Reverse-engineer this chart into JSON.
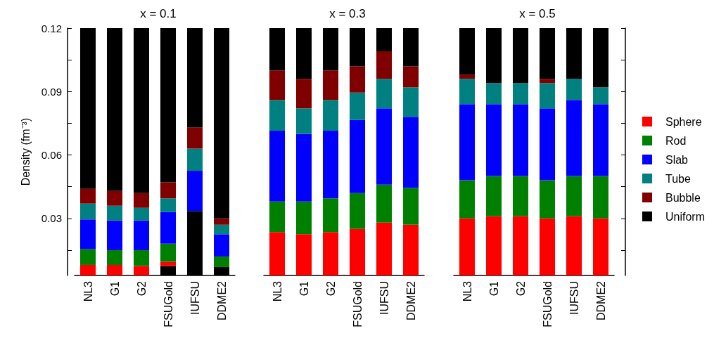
{
  "chart_data": [
    {
      "type": "bar",
      "title": "x = 0.1",
      "ylabel": "Density (fm⁻³)",
      "categories": [
        "NL3",
        "G1",
        "G2",
        "FSUGold",
        "IUFSU",
        "DDME2"
      ],
      "ylim": [
        0.003,
        0.12
      ],
      "yticks": [
        {
          "value": 0.015,
          "label": null
        },
        0.03,
        {
          "value": 0.045,
          "label": null
        },
        0.06,
        {
          "value": 0.075,
          "label": null
        },
        0.09,
        {
          "value": 0.105,
          "label": null
        },
        0.12
      ],
      "legend": false,
      "series": [
        {
          "color": "#000000",
          "base": [
            null,
            null,
            null,
            0.003,
            0.003,
            0.003
          ],
          "values": [
            null,
            null,
            null,
            0.0045,
            0.0305,
            0.004
          ]
        },
        {
          "color": "#ff0000",
          "base": [
            0.003,
            0.003,
            0.003,
            0.0075,
            null,
            null
          ],
          "values": [
            0.005,
            0.005,
            0.0045,
            0.002,
            null,
            null
          ]
        },
        {
          "color": "#008000",
          "base": [
            0.008,
            0.008,
            0.0075,
            0.0095,
            null,
            0.007
          ],
          "values": [
            0.0075,
            0.007,
            0.0075,
            0.0085,
            null,
            0.005
          ]
        },
        {
          "color": "#0000ff",
          "base": [
            0.0155,
            0.015,
            0.015,
            0.018,
            0.0335,
            0.012
          ],
          "values": [
            0.014,
            0.014,
            0.014,
            0.015,
            0.019,
            0.0105
          ]
        },
        {
          "color": "#008080",
          "base": [
            0.0295,
            0.029,
            0.029,
            0.033,
            0.0525,
            0.0225
          ],
          "values": [
            0.0075,
            0.007,
            0.006,
            0.0065,
            0.0105,
            0.0045
          ]
        },
        {
          "color": "#800000",
          "base": [
            0.037,
            0.036,
            0.035,
            0.0395,
            0.063,
            0.027
          ],
          "values": [
            0.007,
            0.007,
            0.007,
            0.0075,
            0.01,
            0.003
          ]
        },
        {
          "color": "#000000",
          "base": [
            0.044,
            0.043,
            0.042,
            0.047,
            0.073,
            0.03
          ],
          "values": [
            0.076,
            0.077,
            0.078,
            0.073,
            0.047,
            0.09
          ]
        }
      ]
    },
    {
      "type": "bar",
      "title": "x = 0.3",
      "categories": [
        "NL3",
        "G1",
        "G2",
        "FSUGold",
        "IUFSU",
        "DDME2"
      ],
      "ylim": [
        0.003,
        0.12
      ],
      "tick_labels": "x",
      "legend": false,
      "series": [
        {
          "color": "#ff0000",
          "base": [
            0.003,
            0.003,
            0.003,
            0.003,
            0.003,
            0.003
          ],
          "values": [
            0.0205,
            0.0195,
            0.0205,
            0.022,
            0.025,
            0.024
          ]
        },
        {
          "color": "#008000",
          "base": [
            0.0235,
            0.0225,
            0.0235,
            0.025,
            0.028,
            0.027
          ],
          "values": [
            0.0145,
            0.0155,
            0.016,
            0.017,
            0.018,
            0.0175
          ]
        },
        {
          "color": "#0000ff",
          "base": [
            0.038,
            0.038,
            0.0395,
            0.042,
            0.046,
            0.0445
          ],
          "values": [
            0.0335,
            0.032,
            0.032,
            0.0345,
            0.036,
            0.0335
          ]
        },
        {
          "color": "#008080",
          "base": [
            0.0715,
            0.07,
            0.0715,
            0.0765,
            0.082,
            0.078
          ],
          "values": [
            0.0145,
            0.012,
            0.0145,
            0.013,
            0.014,
            0.014
          ]
        },
        {
          "color": "#800000",
          "base": [
            0.086,
            0.082,
            0.086,
            0.0895,
            0.096,
            0.092
          ],
          "values": [
            0.014,
            0.014,
            0.014,
            0.0125,
            0.013,
            0.01
          ]
        },
        {
          "color": "#000000",
          "base": [
            0.1,
            0.096,
            0.1,
            0.102,
            0.109,
            0.102
          ],
          "values": [
            0.02,
            0.024,
            0.02,
            0.018,
            0.011,
            0.018
          ]
        }
      ]
    },
    {
      "type": "bar",
      "title": "x = 0.5",
      "categories": [
        "NL3",
        "G1",
        "G2",
        "FSUGold",
        "IUFSU",
        "DDME2"
      ],
      "ylim": [
        0.003,
        0.12
      ],
      "yticks": [
        {
          "value": 0.015,
          "label": null
        },
        0.03,
        {
          "value": 0.045,
          "label": null
        },
        0.06,
        {
          "value": 0.075,
          "label": null
        },
        0.09,
        {
          "value": 0.105,
          "label": null
        },
        0.12
      ],
      "tick_labels": "x",
      "legend": "right",
      "series": [
        {
          "name": "Sphere",
          "color": "#ff0000",
          "base": [
            0.003,
            0.003,
            0.003,
            0.003,
            0.003,
            0.003
          ],
          "values": [
            0.027,
            0.028,
            0.028,
            0.027,
            0.028,
            0.027
          ]
        },
        {
          "name": "Rod",
          "color": "#008000",
          "base": [
            0.03,
            0.031,
            0.031,
            0.03,
            0.031,
            0.03
          ],
          "values": [
            0.018,
            0.019,
            0.019,
            0.018,
            0.019,
            0.02
          ]
        },
        {
          "name": "Slab",
          "color": "#0000ff",
          "base": [
            0.048,
            0.05,
            0.05,
            0.048,
            0.05,
            0.05
          ],
          "values": [
            0.036,
            0.034,
            0.034,
            0.034,
            0.036,
            0.034
          ]
        },
        {
          "name": "Tube",
          "color": "#008080",
          "base": [
            0.084,
            0.084,
            0.084,
            0.082,
            0.086,
            0.084
          ],
          "values": [
            0.012,
            0.01,
            0.01,
            0.012,
            0.01,
            0.008
          ]
        },
        {
          "name": "Bubble",
          "color": "#800000",
          "base": [
            0.096,
            null,
            null,
            0.094,
            null,
            null
          ],
          "values": [
            0.002,
            null,
            null,
            0.002,
            null,
            null
          ]
        },
        {
          "name": "Uniform",
          "color": "#000000",
          "base": [
            0.098,
            0.094,
            0.094,
            0.096,
            0.096,
            0.092
          ],
          "values": [
            0.022,
            0.026,
            0.026,
            0.024,
            0.024,
            0.028
          ]
        }
      ]
    }
  ]
}
